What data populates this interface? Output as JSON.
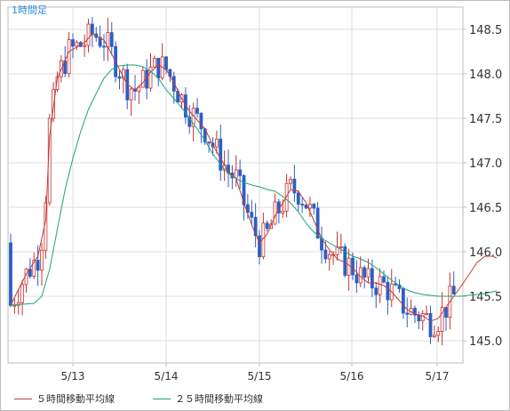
{
  "colors": {
    "up": "#c9302c",
    "down": "#2d5fc4",
    "ma5": "#c23a3a",
    "ma25": "#1aa37a",
    "grid": "#dcdcdc",
    "axis": "#bdbdbd",
    "timeframe": "#2a8fd6"
  },
  "chart_data": {
    "type": "candlestick",
    "timeframe_label": "1時間足",
    "x_tick_labels": [
      "5/13",
      "5/14",
      "5/15",
      "5/16",
      "5/17"
    ],
    "y_tick_labels": [
      "148.5",
      "148.0",
      "147.5",
      "147.0",
      "146.5",
      "146.0",
      "145.5",
      "145.0"
    ],
    "ylim": [
      144.85,
      148.75
    ],
    "grid": true,
    "legend_position": "bottom",
    "series": [
      {
        "name": "５時間移動平均線",
        "type": "line",
        "points": [
          [
            0,
            145.4
          ],
          [
            4,
            145.75
          ],
          [
            7,
            145.95
          ],
          [
            9,
            146.35
          ],
          [
            10,
            147.3
          ],
          [
            12,
            147.95
          ],
          [
            15,
            148.25
          ],
          [
            17,
            148.3
          ],
          [
            19,
            148.35
          ],
          [
            21,
            148.45
          ],
          [
            24,
            148.38
          ],
          [
            26,
            148.22
          ],
          [
            28,
            148.05
          ],
          [
            30,
            147.88
          ],
          [
            32,
            147.82
          ],
          [
            34,
            147.9
          ],
          [
            36,
            148.02
          ],
          [
            38,
            148.1
          ],
          [
            40,
            148.05
          ],
          [
            42,
            147.9
          ],
          [
            44,
            147.72
          ],
          [
            46,
            147.58
          ],
          [
            48,
            147.48
          ],
          [
            50,
            147.38
          ],
          [
            52,
            147.2
          ],
          [
            54,
            147.05
          ],
          [
            56,
            146.9
          ],
          [
            58,
            146.82
          ],
          [
            60,
            146.55
          ],
          [
            62,
            146.3
          ],
          [
            64,
            146.1
          ],
          [
            66,
            146.2
          ],
          [
            68,
            146.4
          ],
          [
            70,
            146.55
          ],
          [
            72,
            146.7
          ],
          [
            74,
            146.68
          ],
          [
            76,
            146.55
          ],
          [
            78,
            146.35
          ],
          [
            80,
            146.15
          ],
          [
            82,
            146.02
          ],
          [
            84,
            145.92
          ],
          [
            86,
            145.88
          ],
          [
            88,
            145.82
          ],
          [
            90,
            145.72
          ],
          [
            92,
            145.65
          ],
          [
            94,
            145.65
          ],
          [
            96,
            145.62
          ],
          [
            98,
            145.55
          ],
          [
            100,
            145.45
          ],
          [
            102,
            145.35
          ],
          [
            104,
            145.3
          ],
          [
            106,
            145.28
          ],
          [
            108,
            145.22
          ],
          [
            110,
            145.25
          ],
          [
            112,
            145.38
          ],
          [
            114,
            145.5
          ],
          [
            116,
            145.62
          ],
          [
            118,
            145.75
          ],
          [
            120,
            145.88
          ],
          [
            122,
            145.95
          ],
          [
            124,
            145.95
          ],
          [
            125,
            145.93
          ]
        ]
      },
      {
        "name": "２５時間移動平均線",
        "type": "line",
        "points": [
          [
            0,
            145.4
          ],
          [
            6,
            145.42
          ],
          [
            8,
            145.5
          ],
          [
            10,
            145.8
          ],
          [
            12,
            146.25
          ],
          [
            14,
            146.7
          ],
          [
            16,
            147.05
          ],
          [
            18,
            147.35
          ],
          [
            20,
            147.6
          ],
          [
            22,
            147.78
          ],
          [
            24,
            147.95
          ],
          [
            26,
            148.05
          ],
          [
            28,
            148.09
          ],
          [
            30,
            148.1
          ],
          [
            32,
            148.1
          ],
          [
            34,
            148.08
          ],
          [
            36,
            148.03
          ],
          [
            38,
            147.95
          ],
          [
            40,
            147.82
          ],
          [
            42,
            147.72
          ],
          [
            44,
            147.62
          ],
          [
            46,
            147.5
          ],
          [
            48,
            147.38
          ],
          [
            50,
            147.25
          ],
          [
            52,
            147.1
          ],
          [
            54,
            146.98
          ],
          [
            56,
            146.88
          ],
          [
            58,
            146.82
          ],
          [
            60,
            146.78
          ],
          [
            62,
            146.75
          ],
          [
            64,
            146.73
          ],
          [
            66,
            146.7
          ],
          [
            68,
            146.68
          ],
          [
            70,
            146.62
          ],
          [
            72,
            146.55
          ],
          [
            74,
            146.45
          ],
          [
            76,
            146.32
          ],
          [
            78,
            146.22
          ],
          [
            80,
            146.15
          ],
          [
            82,
            146.1
          ],
          [
            84,
            146.05
          ],
          [
            86,
            146.0
          ],
          [
            88,
            145.95
          ],
          [
            90,
            145.92
          ],
          [
            92,
            145.88
          ],
          [
            94,
            145.82
          ],
          [
            96,
            145.75
          ],
          [
            98,
            145.68
          ],
          [
            100,
            145.62
          ],
          [
            102,
            145.57
          ],
          [
            104,
            145.54
          ],
          [
            106,
            145.52
          ],
          [
            108,
            145.51
          ],
          [
            110,
            145.5
          ],
          [
            112,
            145.5
          ],
          [
            114,
            145.5
          ],
          [
            116,
            145.5
          ],
          [
            118,
            145.51
          ],
          [
            120,
            145.52
          ],
          [
            122,
            145.53
          ],
          [
            124,
            145.55
          ],
          [
            125,
            145.56
          ]
        ]
      }
    ]
  },
  "legend": {
    "ma5_label": "５時間移動平均線",
    "ma25_label": "２５時間移動平均線"
  }
}
